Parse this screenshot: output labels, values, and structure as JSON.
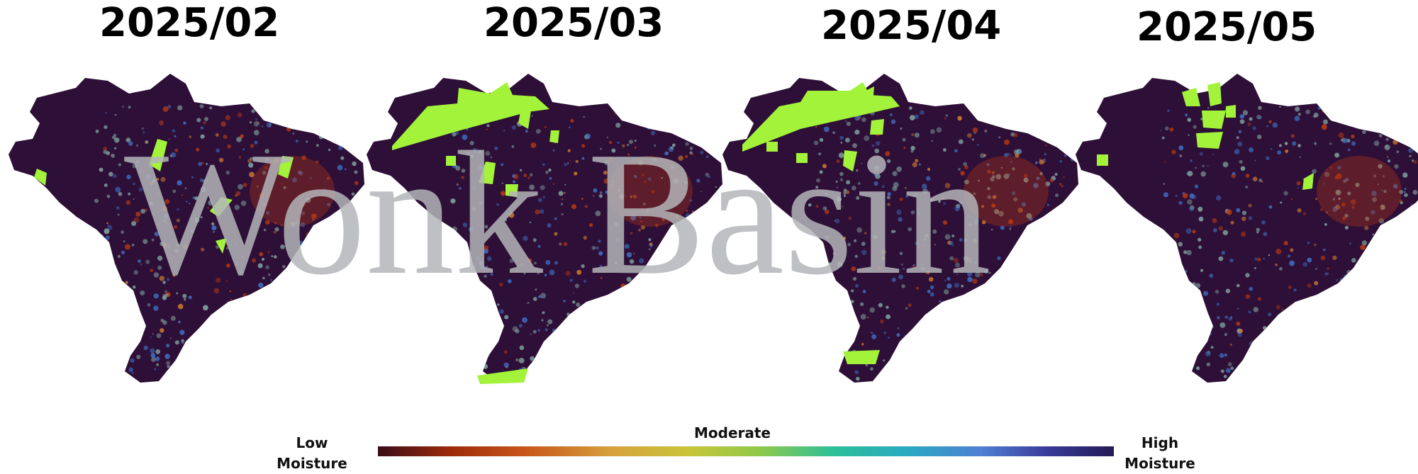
{
  "watermark_text": "Wonk Basin",
  "panels": [
    {
      "title": "2025/02"
    },
    {
      "title": "2025/03"
    },
    {
      "title": "2025/04"
    },
    {
      "title": "2025/05"
    }
  ],
  "legend": {
    "low_line1": "Low",
    "low_line2": "Moisture",
    "moderate": "Moderate",
    "high_line1": "High",
    "high_line2": "Moisture"
  },
  "colors": {
    "background": "#ffffff",
    "land_base": "#2e0f37",
    "no_data": "#a2f33a",
    "dry_high": "#b83a14",
    "dry_mid": "#c97a30",
    "moderate": "#7fa3a0",
    "wet": "#3e6fc2"
  }
}
